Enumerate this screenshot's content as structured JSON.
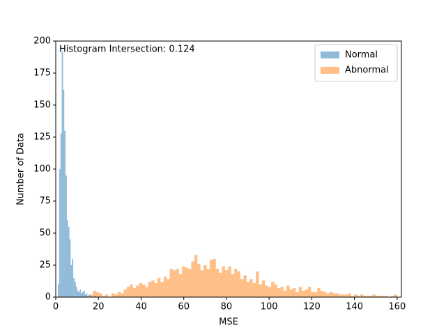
{
  "chart_data": {
    "type": "histogram",
    "xlabel": "MSE",
    "ylabel": "Number of Data",
    "annotation": "Histogram Intersection: 0.124",
    "xlim": [
      0,
      162
    ],
    "ylim": [
      0,
      200
    ],
    "xticks": [
      0,
      20,
      40,
      60,
      80,
      100,
      120,
      140,
      160
    ],
    "yticks": [
      0,
      25,
      50,
      75,
      100,
      125,
      150,
      175,
      200
    ],
    "legend": "upper right",
    "opacity": 0.5,
    "series": [
      {
        "name": "Normal",
        "color": "#1f77b4",
        "bins": [
          1,
          1.6,
          2.2,
          2.8,
          3.4,
          4,
          4.6,
          5.2,
          5.8,
          6.4,
          7,
          7.6,
          8.2,
          8.8,
          9.4,
          10,
          10.6,
          11.2,
          11.8,
          12.4,
          13,
          13.6,
          14.2,
          14.8,
          15.4,
          16,
          16.6,
          17.2,
          17.8,
          18.4,
          19
        ],
        "values": [
          10,
          100,
          128,
          192,
          162,
          130,
          95,
          60,
          55,
          45,
          25,
          30,
          15,
          12,
          8,
          5,
          4,
          6,
          3,
          4,
          5,
          2,
          3,
          1,
          2,
          1,
          1,
          0,
          1,
          1
        ]
      },
      {
        "name": "Abnormal",
        "color": "#ff7f0e",
        "bins": [
          16,
          17.44,
          18.88,
          20.32,
          21.76,
          23.2,
          24.64,
          26.08,
          27.52,
          28.96,
          30.4,
          31.84,
          33.28,
          34.72,
          36.16,
          37.6,
          39.04,
          40.48,
          41.92,
          43.36,
          44.8,
          46.24,
          47.68,
          49.12,
          50.56,
          52,
          53.44,
          54.88,
          56.32,
          57.76,
          59.2,
          60.64,
          62.08,
          63.52,
          64.96,
          66.4,
          67.84,
          69.28,
          70.72,
          72.16,
          73.6,
          75.04,
          76.48,
          77.92,
          79.36,
          80.8,
          82.24,
          83.68,
          85.12,
          86.56,
          88,
          89.44,
          90.88,
          92.32,
          93.76,
          95.2,
          96.64,
          98.08,
          99.52,
          100.96,
          102.4,
          103.84,
          105.28,
          106.72,
          108.16,
          109.6,
          111.04,
          112.48,
          113.92,
          115.36,
          116.8,
          118.24,
          119.68,
          121.12,
          122.56,
          124,
          125.44,
          126.88,
          128.32,
          129.76,
          131.2,
          132.64,
          134.08,
          135.52,
          136.96,
          138.4,
          139.84,
          141.28,
          142.72,
          144.16,
          145.6,
          147.04,
          148.48,
          149.92,
          151.36,
          152.8,
          154.24,
          155.68,
          157.12,
          158.56,
          160
        ],
        "values": [
          2,
          5,
          4,
          3,
          1,
          2,
          0,
          3,
          2,
          4,
          3,
          6,
          8,
          10,
          7,
          9,
          11,
          10,
          8,
          12,
          13,
          11,
          15,
          12,
          16,
          14,
          22,
          21,
          22,
          18,
          24,
          23,
          22,
          28,
          33,
          26,
          21,
          25,
          22,
          29,
          30,
          22,
          19,
          24,
          21,
          24,
          18,
          22,
          20,
          14,
          17,
          12,
          14,
          11,
          20,
          10,
          13,
          9,
          8,
          12,
          10,
          7,
          8,
          5,
          9,
          6,
          7,
          4,
          8,
          5,
          6,
          8,
          4,
          4,
          7,
          5,
          4,
          3,
          4,
          3,
          3,
          2,
          2,
          2,
          3,
          1,
          2,
          1,
          2,
          1,
          1,
          1,
          2,
          1,
          1,
          1,
          1,
          0,
          1,
          2
        ]
      }
    ]
  }
}
